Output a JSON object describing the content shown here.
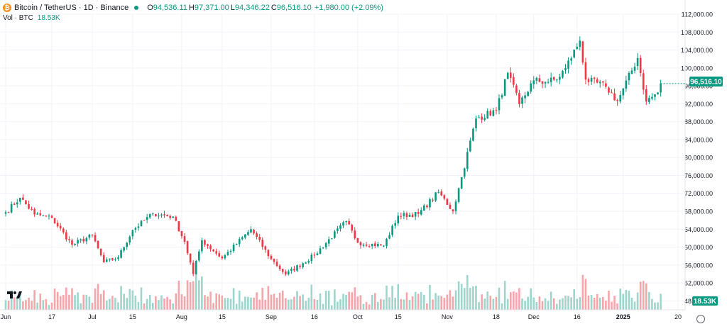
{
  "legend": {
    "symbol_icon": "bitcoin-icon",
    "title": "Bitcoin / TetherUS · 1D · Binance",
    "open_label": "O",
    "open": "94,536.11",
    "high_label": "H",
    "high": "97,371.00",
    "low_label": "L",
    "low": "94,346.22",
    "close_label": "C",
    "close": "96,516.10",
    "change": "+1,980.00 (+2.09%)"
  },
  "volume_legend": {
    "label": "Vol · BTC",
    "value": "18.53K"
  },
  "price_badge": "96,516.10",
  "volume_badge": "18.53K",
  "colors": {
    "up": "#089981",
    "down": "#f23645",
    "vol_up": "#9ed6cd",
    "vol_down": "#f5a6ab",
    "grid": "#f0f3fa",
    "text": "#131722"
  },
  "chart_data": {
    "type": "candlestick",
    "title": "Bitcoin / TetherUS · 1D · Binance",
    "y_axis": {
      "min": 46000,
      "max": 112000,
      "ticks": [
        48000,
        52000,
        56000,
        60000,
        64000,
        68000,
        72000,
        76000,
        80000,
        84000,
        88000,
        92000,
        96000,
        100000,
        104000,
        108000,
        112000
      ],
      "tick_labels": [
        "48,000.00",
        "52,000.00",
        "56,000.00",
        "60,000.00",
        "64,000.00",
        "68,000.00",
        "72,000.00",
        "76,000.00",
        "80,000.00",
        "84,000.00",
        "88,000.00",
        "92,000.00",
        "96,000.00",
        "100,000.00",
        "104,000.00",
        "108,000.00",
        "112,000.00"
      ]
    },
    "x_axis": {
      "tick_labels": [
        "Jun",
        "17",
        "Jul",
        "15",
        "Aug",
        "15",
        "Sep",
        "16",
        "Oct",
        "15",
        "Nov",
        "18",
        "Dec",
        "16",
        "2025",
        "20"
      ],
      "tick_dates": [
        "2024-06-01",
        "2024-06-17",
        "2024-07-01",
        "2024-07-15",
        "2024-08-01",
        "2024-08-15",
        "2024-09-01",
        "2024-09-16",
        "2024-10-01",
        "2024-10-15",
        "2024-11-01",
        "2024-11-18",
        "2024-12-01",
        "2024-12-16",
        "2025-01-01",
        "2025-01-20"
      ]
    },
    "last_close": 96516.1,
    "series": [
      {
        "date": "2024-06-01",
        "close": 67800
      },
      {
        "date": "2024-06-06",
        "close": 71000
      },
      {
        "date": "2024-06-11",
        "close": 67300
      },
      {
        "date": "2024-06-17",
        "close": 66500
      },
      {
        "date": "2024-06-24",
        "close": 60500
      },
      {
        "date": "2024-07-01",
        "close": 62600
      },
      {
        "date": "2024-07-05",
        "close": 56600
      },
      {
        "date": "2024-07-10",
        "close": 57700
      },
      {
        "date": "2024-07-15",
        "close": 63800
      },
      {
        "date": "2024-07-22",
        "close": 67500
      },
      {
        "date": "2024-07-29",
        "close": 66800
      },
      {
        "date": "2024-08-02",
        "close": 61200
      },
      {
        "date": "2024-08-05",
        "close": 54000
      },
      {
        "date": "2024-08-08",
        "close": 61500
      },
      {
        "date": "2024-08-15",
        "close": 57500
      },
      {
        "date": "2024-08-25",
        "close": 64000
      },
      {
        "date": "2024-09-01",
        "close": 57300
      },
      {
        "date": "2024-09-06",
        "close": 53900
      },
      {
        "date": "2024-09-16",
        "close": 58200
      },
      {
        "date": "2024-09-27",
        "close": 65800
      },
      {
        "date": "2024-10-01",
        "close": 61000
      },
      {
        "date": "2024-10-10",
        "close": 60300
      },
      {
        "date": "2024-10-15",
        "close": 67000
      },
      {
        "date": "2024-10-22",
        "close": 67400
      },
      {
        "date": "2024-10-29",
        "close": 72300
      },
      {
        "date": "2024-11-03",
        "close": 68000
      },
      {
        "date": "2024-11-06",
        "close": 75600
      },
      {
        "date": "2024-11-11",
        "close": 88700
      },
      {
        "date": "2024-11-18",
        "close": 90500
      },
      {
        "date": "2024-11-22",
        "close": 98900
      },
      {
        "date": "2024-11-26",
        "close": 91900
      },
      {
        "date": "2024-12-01",
        "close": 97200
      },
      {
        "date": "2024-12-05",
        "close": 96900
      },
      {
        "date": "2024-12-09",
        "close": 97400
      },
      {
        "date": "2024-12-12",
        "close": 100000
      },
      {
        "date": "2024-12-17",
        "close": 106100
      },
      {
        "date": "2024-12-19",
        "close": 97400
      },
      {
        "date": "2024-12-26",
        "close": 95800
      },
      {
        "date": "2024-12-30",
        "close": 92600
      },
      {
        "date": "2025-01-06",
        "close": 102200
      },
      {
        "date": "2025-01-09",
        "close": 92500
      },
      {
        "date": "2025-01-13",
        "close": 94500
      },
      {
        "date": "2025-01-14",
        "close": 96516
      }
    ]
  }
}
